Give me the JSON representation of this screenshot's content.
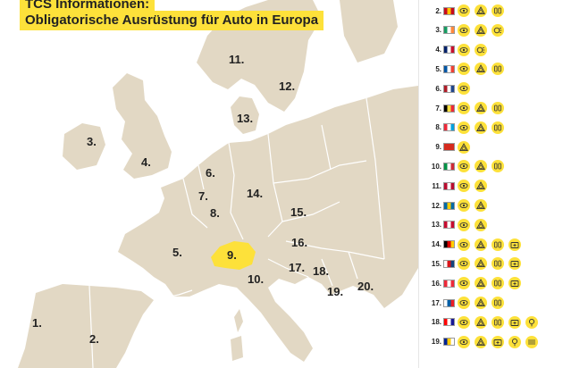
{
  "header": {
    "line1": "TCS Informationen:",
    "line2": "Obligatorische Ausrüstung für Auto in Europa"
  },
  "map": {
    "colors": {
      "land": "#e2d8c4",
      "sea": "#ffffff",
      "highlight": "#fde13a",
      "border": "#ffffff"
    },
    "labels": [
      {
        "id": "1",
        "text": "1."
      },
      {
        "id": "2",
        "text": "2."
      },
      {
        "id": "3",
        "text": "3."
      },
      {
        "id": "4",
        "text": "4."
      },
      {
        "id": "5",
        "text": "5."
      },
      {
        "id": "6",
        "text": "6."
      },
      {
        "id": "7",
        "text": "7."
      },
      {
        "id": "8",
        "text": "8."
      },
      {
        "id": "9",
        "text": "9."
      },
      {
        "id": "10",
        "text": "10."
      },
      {
        "id": "11",
        "text": "11."
      },
      {
        "id": "12",
        "text": "12."
      },
      {
        "id": "13",
        "text": "13."
      },
      {
        "id": "14",
        "text": "14."
      },
      {
        "id": "15",
        "text": "15."
      },
      {
        "id": "16",
        "text": "16."
      },
      {
        "id": "17",
        "text": "17."
      },
      {
        "id": "18",
        "text": "18."
      },
      {
        "id": "19",
        "text": "19."
      },
      {
        "id": "20",
        "text": "20."
      }
    ]
  },
  "legend": {
    "rows": [
      {
        "num": "2.",
        "flag": [
          "#c60b1e",
          "#ffc400",
          "#c60b1e"
        ],
        "icons": [
          "vest-icon",
          "triangle-icon",
          "bulb-icon"
        ]
      },
      {
        "num": "3.",
        "flag": [
          "#169b62",
          "#ffffff",
          "#ff883e"
        ],
        "icons": [
          "vest-icon",
          "triangle-icon",
          "lamp-icon"
        ]
      },
      {
        "num": "4.",
        "flag": [
          "#012169",
          "#ffffff",
          "#c8102e"
        ],
        "icons": [
          "vest-icon",
          "lamp-icon"
        ]
      },
      {
        "num": "5.",
        "flag": [
          "#0055a4",
          "#ffffff",
          "#ef4135"
        ],
        "icons": [
          "vest-icon",
          "triangle-icon",
          "bulb-icon"
        ]
      },
      {
        "num": "6.",
        "flag": [
          "#ae1c28",
          "#ffffff",
          "#21468b"
        ],
        "icons": [
          "vest-icon"
        ]
      },
      {
        "num": "7.",
        "flag": [
          "#000000",
          "#fae042",
          "#ed2939"
        ],
        "icons": [
          "vest-icon",
          "triangle-icon",
          "bulb-icon"
        ]
      },
      {
        "num": "8.",
        "flag": [
          "#ed2939",
          "#ffffff",
          "#00a1de"
        ],
        "icons": [
          "vest-icon",
          "triangle-icon",
          "bulb-icon"
        ]
      },
      {
        "num": "9.",
        "flag": [
          "#d52b1e",
          "#d52b1e",
          "#d52b1e"
        ],
        "icons": [
          "triangle-icon"
        ]
      },
      {
        "num": "10.",
        "flag": [
          "#009246",
          "#ffffff",
          "#ce2b37"
        ],
        "icons": [
          "vest-icon",
          "triangle-icon",
          "bulb-icon"
        ]
      },
      {
        "num": "11.",
        "flag": [
          "#ba0c2f",
          "#ffffff",
          "#ba0c2f"
        ],
        "icons": [
          "vest-icon",
          "triangle-icon"
        ]
      },
      {
        "num": "12.",
        "flag": [
          "#006aa7",
          "#fecc00",
          "#006aa7"
        ],
        "icons": [
          "vest-icon",
          "triangle-icon"
        ]
      },
      {
        "num": "13.",
        "flag": [
          "#c60c30",
          "#ffffff",
          "#c60c30"
        ],
        "icons": [
          "vest-icon",
          "triangle-icon"
        ]
      },
      {
        "num": "14.",
        "flag": [
          "#000000",
          "#dd0000",
          "#ffce00"
        ],
        "icons": [
          "vest-icon",
          "triangle-icon",
          "bulb-icon",
          "firstaid-icon"
        ]
      },
      {
        "num": "15.",
        "flag": [
          "#ffffff",
          "#d7141a",
          "#11457e"
        ],
        "icons": [
          "vest-icon",
          "triangle-icon",
          "bulb-icon",
          "firstaid-icon"
        ]
      },
      {
        "num": "16.",
        "flag": [
          "#ed2939",
          "#ffffff",
          "#ed2939"
        ],
        "icons": [
          "vest-icon",
          "triangle-icon",
          "bulb-icon",
          "firstaid-icon"
        ]
      },
      {
        "num": "17.",
        "flag": [
          "#ffffff",
          "#005da4",
          "#ed1c24"
        ],
        "icons": [
          "vest-icon",
          "triangle-icon",
          "bulb-icon"
        ]
      },
      {
        "num": "18.",
        "flag": [
          "#ff0000",
          "#ffffff",
          "#171796"
        ],
        "icons": [
          "vest-icon",
          "triangle-icon",
          "bulb-icon",
          "firstaid-icon",
          "tow-icon"
        ]
      },
      {
        "num": "19.",
        "flag": [
          "#002395",
          "#fecb00",
          "#ffffff"
        ],
        "icons": [
          "vest-icon",
          "triangle-icon",
          "firstaid-icon",
          "tow-icon",
          "rope-icon"
        ]
      }
    ]
  }
}
